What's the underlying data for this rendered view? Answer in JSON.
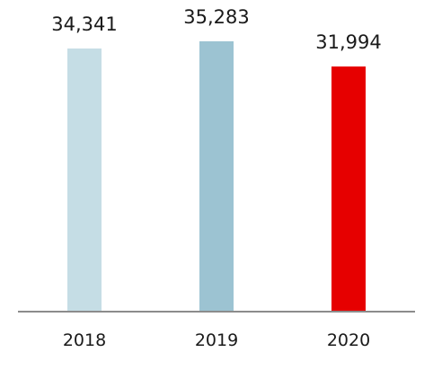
{
  "chart_data": {
    "type": "bar",
    "categories": [
      "2018",
      "2019",
      "2020"
    ],
    "values": [
      34341,
      35283,
      31994
    ],
    "value_labels": [
      "34,341",
      "35,283",
      "31,994"
    ],
    "bar_colors": [
      "#c5dde5",
      "#9cc3d2",
      "#e60000"
    ],
    "axis_color": "#8c8c8c",
    "ylim": [
      0,
      35283
    ],
    "title": "",
    "xlabel": "",
    "ylabel": "",
    "grid": false,
    "legend": "none"
  }
}
